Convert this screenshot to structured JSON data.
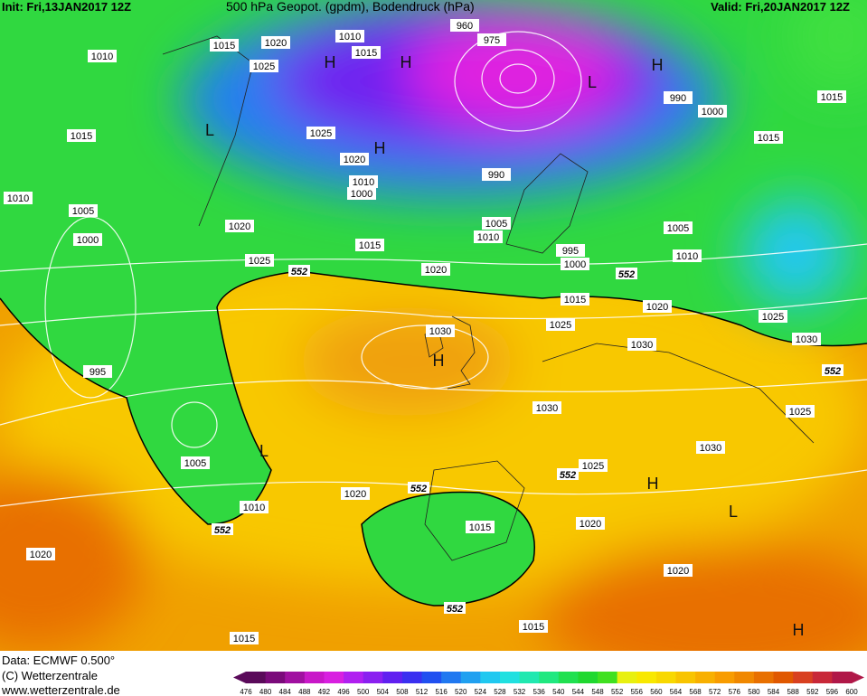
{
  "header": {
    "init": "Init: Fri,13JAN2017 12Z",
    "title": "500 hPa Geopot. (gpdm), Bodendruck (hPa)",
    "valid": "Valid: Fri,20JAN2017 12Z"
  },
  "footer": {
    "data": "Data: ECMWF   0.500°",
    "copyright": "(C) Wetterzentrale",
    "url": "www.wetterzentrale.de"
  },
  "legend": {
    "levels": [
      476,
      480,
      484,
      488,
      492,
      496,
      500,
      504,
      508,
      512,
      516,
      520,
      524,
      528,
      532,
      536,
      540,
      544,
      548,
      552,
      556,
      560,
      564,
      568,
      572,
      576,
      580,
      584,
      588,
      592,
      596,
      600
    ],
    "colors": [
      "#5a0a5a",
      "#7a0a7a",
      "#a010a0",
      "#c818c8",
      "#d820e0",
      "#b020f0",
      "#8a20f0",
      "#6020f0",
      "#3a30f0",
      "#2050f0",
      "#2078f0",
      "#20a0f0",
      "#20c8f0",
      "#20e0e0",
      "#20e8b0",
      "#20e880",
      "#20e050",
      "#20d830",
      "#40e020",
      "#e8f010",
      "#f8e800",
      "#f8d800",
      "#f8c400",
      "#f8b000",
      "#f89c00",
      "#f08800",
      "#e87000",
      "#e05800",
      "#d84020",
      "#c82838",
      "#b01848"
    ]
  },
  "map": {
    "isobar_labels": [
      "1015",
      "1020",
      "1010",
      "1015",
      "1025",
      "1010",
      "1015",
      "1025",
      "1020",
      "1010",
      "1000",
      "960",
      "975",
      "990",
      "1000",
      "1015",
      "1015",
      "1010",
      "1005",
      "1000",
      "1020",
      "1015",
      "990",
      "1005",
      "1010",
      "995",
      "1000",
      "1005",
      "1010",
      "1025",
      "1020",
      "1015",
      "1020",
      "1025",
      "1030",
      "1030",
      "1025",
      "1030",
      "995",
      "1030",
      "1025",
      "1030",
      "1005",
      "1025",
      "1010",
      "1020",
      "1015",
      "1020",
      "1020",
      "1020",
      "1015",
      "1015"
    ],
    "height_labels": [
      "552",
      "552",
      "552",
      "552",
      "552",
      "552",
      "552"
    ],
    "pressure_centers": [
      "H",
      "H",
      "H",
      "L",
      "H",
      "H",
      "L",
      "H",
      "L",
      "L",
      "H"
    ]
  }
}
